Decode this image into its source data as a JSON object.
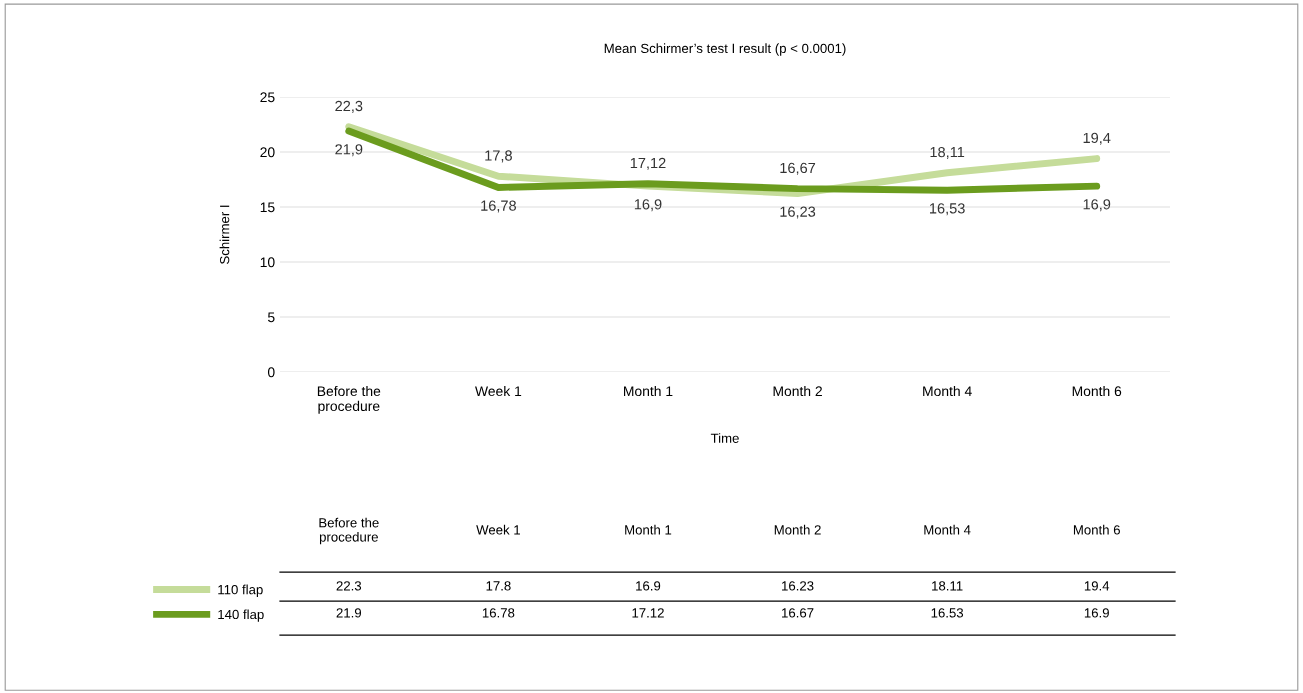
{
  "chart_data": {
    "type": "line",
    "title": "Mean Schirmer’s test I result (p < 0.0001)",
    "xlabel": "Time",
    "ylabel": "Schirmer I",
    "categories": [
      "Before the\nprocedure",
      "Week 1",
      "Month 1",
      "Month 2",
      "Month 4",
      "Month 6"
    ],
    "series": [
      {
        "name": "110 flap",
        "color": "#c5dc9a",
        "values": [
          22.3,
          17.8,
          16.9,
          16.23,
          18.11,
          19.4
        ],
        "value_labels": [
          "22,3",
          "17,8",
          "16,9",
          "16,23",
          "18,11",
          "19,4"
        ]
      },
      {
        "name": "140 flap",
        "color": "#6b9c1e",
        "values": [
          21.9,
          16.78,
          17.12,
          16.67,
          16.53,
          16.9
        ],
        "value_labels": [
          "21,9",
          "16,78",
          "17,12",
          "16,67",
          "16,53",
          "16,9"
        ]
      }
    ],
    "annotations": [
      "22.3",
      "17.8",
      "16.9",
      "16.23",
      "18.11",
      "19.4",
      "21.9",
      "16.78",
      "17.12",
      "16.67",
      "16.53",
      "16.9"
    ],
    "ylim": [
      0,
      25
    ],
    "yticks": [
      0,
      5,
      10,
      15,
      20,
      25
    ],
    "grid": "y",
    "legend": "bottom",
    "data_labels": true,
    "marker": "none",
    "line_style": "solid"
  }
}
